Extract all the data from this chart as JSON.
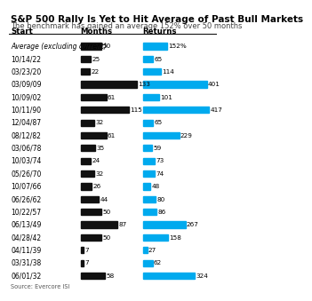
{
  "title": "S&P 500 Rally Is Yet to Hit Average of Past Bull Markets",
  "subtitle": "The benchmark has gained an average 152% over 50 months",
  "source": "Source: Evercore ISI",
  "col_headers": [
    "Start",
    "Months",
    "Returns"
  ],
  "rows": [
    {
      "label": "Average (excluding current)",
      "months": 50,
      "returns": 152,
      "italic": true
    },
    {
      "label": "10/14/22",
      "months": 25,
      "returns": 65,
      "italic": false
    },
    {
      "label": "03/23/20",
      "months": 22,
      "returns": 114,
      "italic": false
    },
    {
      "label": "03/09/09",
      "months": 133,
      "returns": 401,
      "italic": false
    },
    {
      "label": "10/09/02",
      "months": 61,
      "returns": 101,
      "italic": false
    },
    {
      "label": "10/11/90",
      "months": 115,
      "returns": 417,
      "italic": false
    },
    {
      "label": "12/04/87",
      "months": 32,
      "returns": 65,
      "italic": false
    },
    {
      "label": "08/12/82",
      "months": 61,
      "returns": 229,
      "italic": false
    },
    {
      "label": "03/06/78",
      "months": 35,
      "returns": 59,
      "italic": false
    },
    {
      "label": "10/03/74",
      "months": 24,
      "returns": 73,
      "italic": false
    },
    {
      "label": "05/26/70",
      "months": 32,
      "returns": 74,
      "italic": false
    },
    {
      "label": "10/07/66",
      "months": 26,
      "returns": 48,
      "italic": false
    },
    {
      "label": "06/26/62",
      "months": 44,
      "returns": 80,
      "italic": false
    },
    {
      "label": "10/22/57",
      "months": 50,
      "returns": 86,
      "italic": false
    },
    {
      "label": "06/13/49",
      "months": 87,
      "returns": 267,
      "italic": false
    },
    {
      "label": "04/28/42",
      "months": 50,
      "returns": 158,
      "italic": false
    },
    {
      "label": "04/11/39",
      "months": 7,
      "returns": 27,
      "italic": false
    },
    {
      "label": "03/31/38",
      "months": 7,
      "returns": 62,
      "italic": false
    },
    {
      "label": "06/01/32",
      "months": 58,
      "returns": 324,
      "italic": false
    }
  ],
  "months_max": 133,
  "returns_max": 417,
  "bar_color_months": "#111111",
  "bar_color_returns": "#00aaee",
  "bg_color": "#ffffff",
  "title_fontsize": 7.5,
  "subtitle_fontsize": 6.0,
  "label_fontsize": 5.5,
  "value_fontsize": 5.2,
  "header_fontsize": 6.2
}
